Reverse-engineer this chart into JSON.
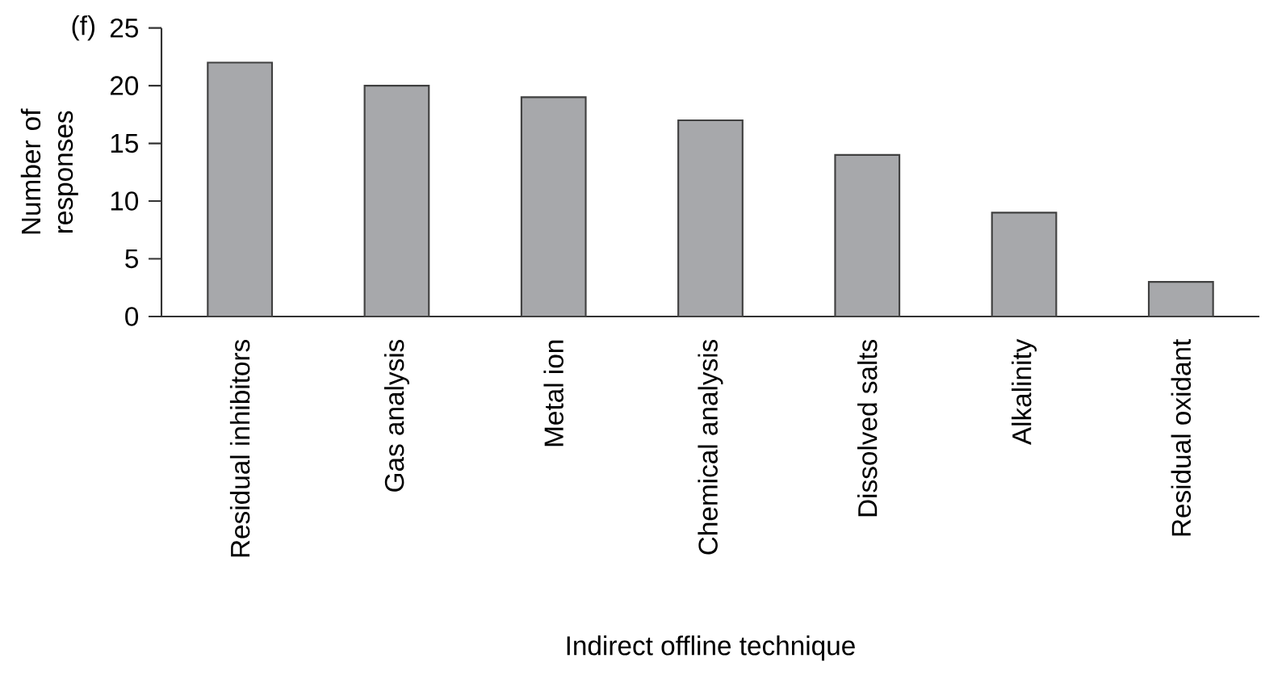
{
  "chart_data": {
    "type": "bar",
    "xlabel": "Indirect offline technique",
    "ylabel": "Number of responses",
    "categories": [
      "Residual inhibitors",
      "Gas analysis",
      "Metal ion",
      "Chemical analysis",
      "Dissolved salts",
      "Alkalinity",
      "Residual oxidant"
    ],
    "values": [
      22,
      20,
      19,
      17,
      14,
      9,
      3
    ],
    "color": "#a7a8ab",
    "ylim": [
      0,
      25
    ],
    "yticks": [
      0,
      5,
      10,
      15,
      20,
      25
    ],
    "grid": false,
    "annotations": [
      "(f)"
    ]
  }
}
